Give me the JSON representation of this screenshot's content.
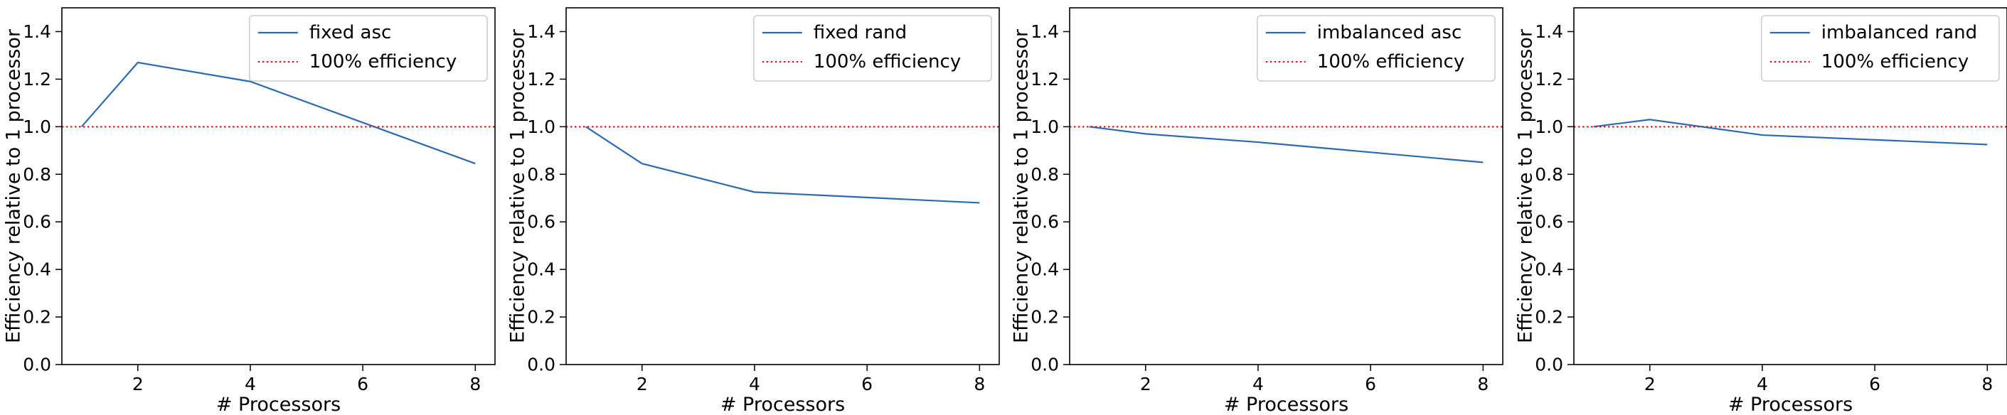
{
  "chart_data": [
    {
      "type": "line",
      "xlabel": "# Processors",
      "ylabel": "Efficiency relative to 1 processor",
      "xlim": [
        0.65,
        8.35
      ],
      "ylim": [
        0.0,
        1.5
      ],
      "xticks": [
        2,
        4,
        6,
        8
      ],
      "yticks": [
        0.0,
        0.2,
        0.4,
        0.6,
        0.8,
        1.0,
        1.2,
        1.4
      ],
      "grid": false,
      "legend_position": "top-right",
      "series": [
        {
          "name": "fixed asc",
          "x": [
            1,
            2,
            4,
            8
          ],
          "y": [
            1.0,
            1.27,
            1.19,
            0.845
          ],
          "color": "#2a6ab3",
          "style": "solid"
        },
        {
          "name": "100% efficiency",
          "x": [
            0.65,
            8.35
          ],
          "y": [
            1.0,
            1.0
          ],
          "color": "#ff0000",
          "style": "dotted"
        }
      ]
    },
    {
      "type": "line",
      "xlabel": "# Processors",
      "ylabel": "Efficiency relative to 1 processor",
      "xlim": [
        0.65,
        8.35
      ],
      "ylim": [
        0.0,
        1.5
      ],
      "xticks": [
        2,
        4,
        6,
        8
      ],
      "yticks": [
        0.0,
        0.2,
        0.4,
        0.6,
        0.8,
        1.0,
        1.2,
        1.4
      ],
      "grid": false,
      "legend_position": "top-right",
      "series": [
        {
          "name": "fixed rand",
          "x": [
            1,
            2,
            4,
            8
          ],
          "y": [
            1.0,
            0.845,
            0.725,
            0.68
          ],
          "color": "#2a6ab3",
          "style": "solid"
        },
        {
          "name": "100% efficiency",
          "x": [
            0.65,
            8.35
          ],
          "y": [
            1.0,
            1.0
          ],
          "color": "#ff0000",
          "style": "dotted"
        }
      ]
    },
    {
      "type": "line",
      "xlabel": "# Processors",
      "ylabel": "Efficiency relative to 1 processor",
      "xlim": [
        0.65,
        8.35
      ],
      "ylim": [
        0.0,
        1.5
      ],
      "xticks": [
        2,
        4,
        6,
        8
      ],
      "yticks": [
        0.0,
        0.2,
        0.4,
        0.6,
        0.8,
        1.0,
        1.2,
        1.4
      ],
      "grid": false,
      "legend_position": "top-right",
      "series": [
        {
          "name": "imbalanced asc",
          "x": [
            1,
            2,
            4,
            8
          ],
          "y": [
            1.0,
            0.97,
            0.935,
            0.85
          ],
          "color": "#2a6ab3",
          "style": "solid"
        },
        {
          "name": "100% efficiency",
          "x": [
            0.65,
            8.35
          ],
          "y": [
            1.0,
            1.0
          ],
          "color": "#ff0000",
          "style": "dotted"
        }
      ]
    },
    {
      "type": "line",
      "xlabel": "# Processors",
      "ylabel": "Efficiency relative to 1 processor",
      "xlim": [
        0.65,
        8.35
      ],
      "ylim": [
        0.0,
        1.5
      ],
      "xticks": [
        2,
        4,
        6,
        8
      ],
      "yticks": [
        0.0,
        0.2,
        0.4,
        0.6,
        0.8,
        1.0,
        1.2,
        1.4
      ],
      "grid": false,
      "legend_position": "top-right",
      "series": [
        {
          "name": "imbalanced rand",
          "x": [
            1,
            2,
            4,
            8
          ],
          "y": [
            1.0,
            1.03,
            0.965,
            0.925
          ],
          "color": "#2a6ab3",
          "style": "solid"
        },
        {
          "name": "100% efficiency",
          "x": [
            0.65,
            8.35
          ],
          "y": [
            1.0,
            1.0
          ],
          "color": "#ff0000",
          "style": "dotted"
        }
      ]
    }
  ]
}
